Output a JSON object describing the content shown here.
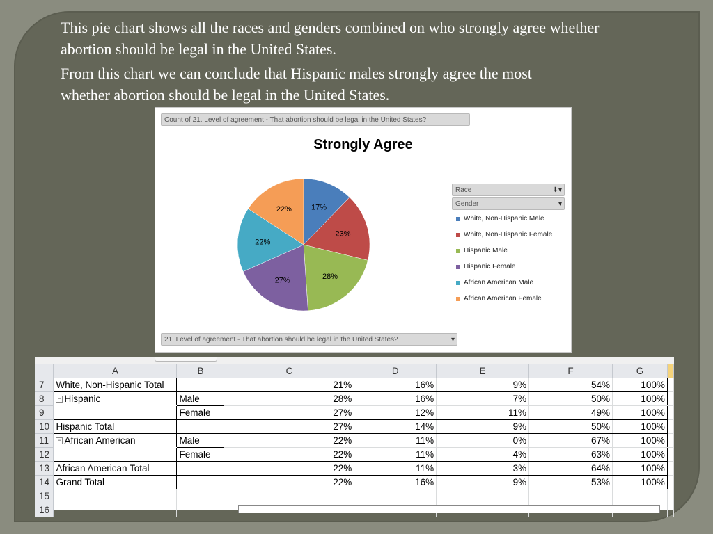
{
  "slide": {
    "paragraph1": "This pie chart shows all the races and genders combined on who strongly agree whether abortion should be legal in the United States.",
    "paragraph2": "From this chart we can conclude that Hispanic males strongly agree the most whether abortion should be legal in the United States."
  },
  "pivot_chart": {
    "count_field_label": "Count of 21. Level of agreement - That abortion should be legal in the United States?",
    "filter_field_label": "21. Level of agreement - That abortion should be legal in the United States?",
    "legend_fields": [
      "Race",
      "Gender"
    ]
  },
  "chart_data": {
    "type": "pie",
    "title": "Strongly Agree",
    "labels": [
      "White, Non-Hispanic  Male",
      "White, Non-Hispanic  Female",
      "Hispanic Male",
      "Hispanic Female",
      "African American  Male",
      "African American  Female"
    ],
    "values": [
      17,
      23,
      28,
      27,
      22,
      22
    ],
    "value_labels": [
      "17%",
      "23%",
      "28%",
      "27%",
      "22%",
      "22%"
    ],
    "colors": [
      "#4a7ebb",
      "#be4b48",
      "#98b954",
      "#7d60a0",
      "#46aac5",
      "#f59d56"
    ],
    "legend_position": "right"
  },
  "spreadsheet": {
    "columns": [
      "A",
      "B",
      "C",
      "D",
      "E",
      "F",
      "G"
    ],
    "rows": [
      {
        "num": "7",
        "a": "White, Non-Hispanic  Total",
        "b": "",
        "c": "21%",
        "d": "16%",
        "e": "9%",
        "f": "54%",
        "g": "100%"
      },
      {
        "num": "8",
        "a": "Hispanic",
        "b": "Male",
        "c": "28%",
        "d": "16%",
        "e": "7%",
        "f": "50%",
        "g": "100%"
      },
      {
        "num": "9",
        "a": "",
        "b": "Female",
        "c": "27%",
        "d": "12%",
        "e": "11%",
        "f": "49%",
        "g": "100%"
      },
      {
        "num": "10",
        "a": "Hispanic Total",
        "b": "",
        "c": "27%",
        "d": "14%",
        "e": "9%",
        "f": "50%",
        "g": "100%"
      },
      {
        "num": "11",
        "a": "African American",
        "b": "Male",
        "c": "22%",
        "d": "11%",
        "e": "0%",
        "f": "67%",
        "g": "100%"
      },
      {
        "num": "12",
        "a": "",
        "b": "Female",
        "c": "22%",
        "d": "11%",
        "e": "4%",
        "f": "63%",
        "g": "100%"
      },
      {
        "num": "13",
        "a": "African American  Total",
        "b": "",
        "c": "22%",
        "d": "11%",
        "e": "3%",
        "f": "64%",
        "g": "100%"
      },
      {
        "num": "14",
        "a": "Grand Total",
        "b": "",
        "c": "22%",
        "d": "16%",
        "e": "9%",
        "f": "53%",
        "g": "100%"
      },
      {
        "num": "15",
        "a": "",
        "b": "",
        "c": "",
        "d": "",
        "e": "",
        "f": "",
        "g": ""
      },
      {
        "num": "16",
        "a": "",
        "b": "",
        "c": "",
        "d": "",
        "e": "",
        "f": "",
        "g": ""
      }
    ]
  }
}
